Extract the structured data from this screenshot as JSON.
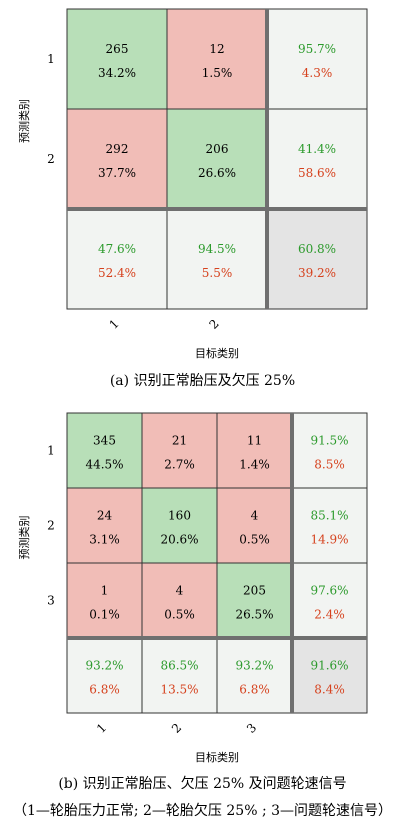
{
  "chart_data": [
    {
      "type": "heatmap",
      "subtype": "confusion-matrix",
      "ylabel": "预测类别",
      "xlabel": "目标类别",
      "row_labels": [
        "1",
        "2"
      ],
      "col_labels": [
        "1",
        "2"
      ],
      "cells": [
        [
          {
            "count": "265",
            "pct": "34.2%",
            "correct": true
          },
          {
            "count": "12",
            "pct": "1.5%",
            "correct": false
          }
        ],
        [
          {
            "count": "292",
            "pct": "37.7%",
            "correct": false
          },
          {
            "count": "206",
            "pct": "26.6%",
            "correct": true
          }
        ]
      ],
      "row_summary": [
        {
          "good": "95.7%",
          "bad": "4.3%"
        },
        {
          "good": "41.4%",
          "bad": "58.6%"
        }
      ],
      "col_summary": [
        {
          "good": "47.6%",
          "bad": "52.4%"
        },
        {
          "good": "94.5%",
          "bad": "5.5%"
        }
      ],
      "overall": {
        "good": "60.8%",
        "bad": "39.2%"
      }
    },
    {
      "type": "heatmap",
      "subtype": "confusion-matrix",
      "ylabel": "预测类别",
      "xlabel": "目标类别",
      "row_labels": [
        "1",
        "2",
        "3"
      ],
      "col_labels": [
        "1",
        "2",
        "3"
      ],
      "cells": [
        [
          {
            "count": "345",
            "pct": "44.5%",
            "correct": true
          },
          {
            "count": "21",
            "pct": "2.7%",
            "correct": false
          },
          {
            "count": "11",
            "pct": "1.4%",
            "correct": false
          }
        ],
        [
          {
            "count": "24",
            "pct": "3.1%",
            "correct": false
          },
          {
            "count": "160",
            "pct": "20.6%",
            "correct": true
          },
          {
            "count": "4",
            "pct": "0.5%",
            "correct": false
          }
        ],
        [
          {
            "count": "1",
            "pct": "0.1%",
            "correct": false
          },
          {
            "count": "4",
            "pct": "0.5%",
            "correct": false
          },
          {
            "count": "205",
            "pct": "26.5%",
            "correct": true
          }
        ]
      ],
      "row_summary": [
        {
          "good": "91.5%",
          "bad": "8.5%"
        },
        {
          "good": "85.1%",
          "bad": "14.9%"
        },
        {
          "good": "97.6%",
          "bad": "2.4%"
        }
      ],
      "col_summary": [
        {
          "good": "93.2%",
          "bad": "6.8%"
        },
        {
          "good": "86.5%",
          "bad": "13.5%"
        },
        {
          "good": "93.2%",
          "bad": "6.8%"
        }
      ],
      "overall": {
        "good": "91.6%",
        "bad": "8.4%"
      }
    }
  ],
  "captions": {
    "a": "(a) 识别正常胎压及欠压 25%",
    "b_line1": "(b) 识别正常胎压、欠压 25% 及问题轮速信号",
    "b_line2": "（1—轮胎压力正常; 2—轮胎欠压 25% ; 3—问题轮速信号）"
  },
  "colors": {
    "correct_cell": "#b8dfb8",
    "wrong_cell": "#f1bdb7",
    "summary_cell": "#f2f4f2",
    "overall_cell": "#e4e4e4",
    "good_text": "#2c9a2c",
    "bad_text": "#d6421e",
    "divider": "#6f6f6f"
  }
}
